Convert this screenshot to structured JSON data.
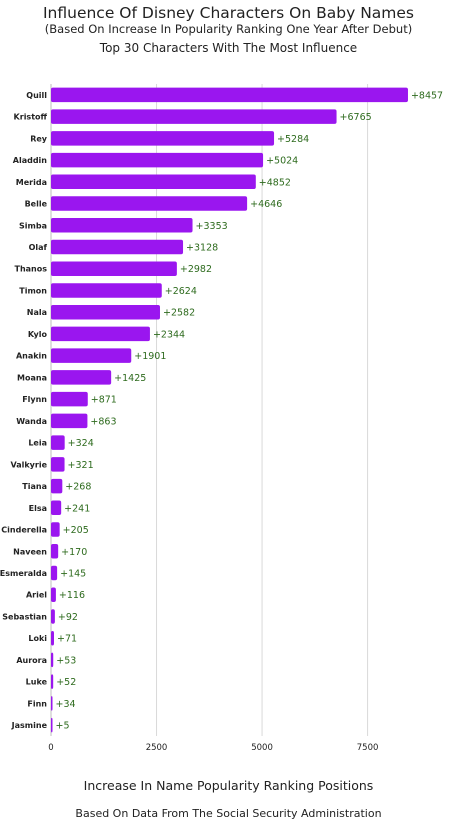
{
  "chart_data": {
    "type": "bar",
    "orientation": "horizontal",
    "title": "Influence Of Disney Characters On Baby Names",
    "subtitle": "(Based On Increase In Popularity Ranking One Year After Debut)",
    "subtitle2": "Top 30 Characters With The Most Influence",
    "xlabel": "Increase In Name Popularity Ranking Positions",
    "footer": "Based On Data From The Social Security Administration",
    "categories": [
      "Quill",
      "Kristoff",
      "Rey",
      "Aladdin",
      "Merida",
      "Belle",
      "Simba",
      "Olaf",
      "Thanos",
      "Timon",
      "Nala",
      "Kylo",
      "Anakin",
      "Moana",
      "Flynn",
      "Wanda",
      "Leia",
      "Valkyrie",
      "Tiana",
      "Elsa",
      "Cinderella",
      "Naveen",
      "Esmeralda",
      "Ariel",
      "Sebastian",
      "Loki",
      "Aurora",
      "Luke",
      "Finn",
      "Jasmine"
    ],
    "values": [
      8457,
      6765,
      5284,
      5024,
      4852,
      4646,
      3353,
      3128,
      2982,
      2624,
      2582,
      2344,
      1901,
      1425,
      871,
      863,
      324,
      321,
      268,
      241,
      205,
      170,
      145,
      116,
      92,
      71,
      53,
      52,
      34,
      5
    ],
    "data_labels": [
      "+8457",
      "+6765",
      "+5284",
      "+5024",
      "+4852",
      "+4646",
      "+3353",
      "+3128",
      "+2982",
      "+2624",
      "+2582",
      "+2344",
      "+1901",
      "+1425",
      "+871",
      "+863",
      "+324",
      "+321",
      "+268",
      "+241",
      "+205",
      "+170",
      "+145",
      "+116",
      "+92",
      "+71",
      "+53",
      "+52",
      "+34",
      "+5"
    ],
    "xticks": [
      0,
      2500,
      5000,
      7500
    ],
    "xtick_labels": [
      "0",
      "2500",
      "5000",
      "7500"
    ],
    "xlim": [
      0,
      9500
    ],
    "grid": true,
    "bar_color": "#9a16ef",
    "label_color": "#2e6b1e"
  }
}
